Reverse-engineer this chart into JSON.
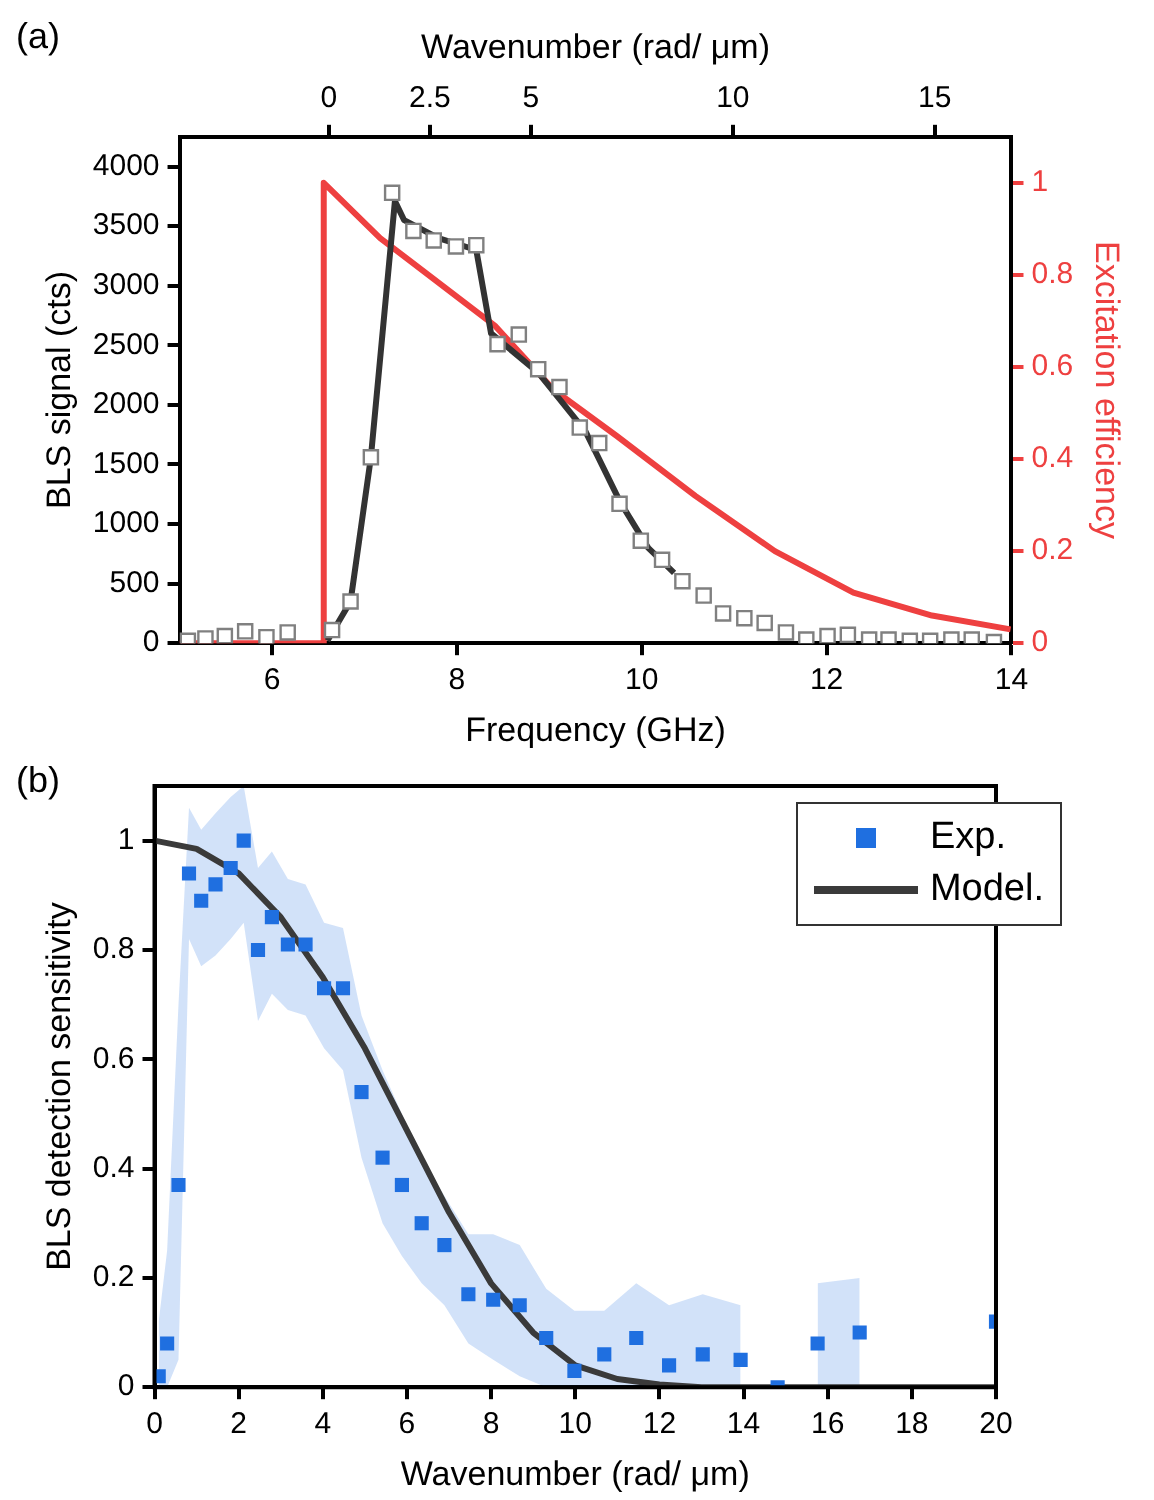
{
  "chart_data": [
    {
      "type": "line",
      "xlabel": "Frequency (GHz)",
      "ylabel": "BLS signal (cts)",
      "y2label": "Excitation efficiency",
      "x2label": "Wavenumber (rad/ μm)",
      "annotations": [
        "(a)"
      ],
      "xlim": [
        5,
        14
      ],
      "xticks": [
        6,
        8,
        10,
        12,
        14
      ],
      "ylim": [
        0,
        4250
      ],
      "yticks": [
        0,
        500,
        1000,
        1500,
        2000,
        2500,
        3000,
        3500,
        4000
      ],
      "y2lim": [
        0,
        1.1
      ],
      "y2ticks": [
        0,
        0.2,
        0.4,
        0.6,
        0.8,
        1.0
      ],
      "x2lim": [
        -3.7,
        16.9
      ],
      "x2ticks": [
        0,
        2.5,
        5,
        10,
        15
      ],
      "grid": false,
      "legend": false,
      "series": [
        {
          "type": "scatter",
          "marker": "square",
          "color": "#808080",
          "x": [
            5.09,
            5.28,
            5.49,
            5.71,
            5.94,
            6.17,
            6.65,
            6.85,
            7.07,
            7.3,
            7.53,
            7.75,
            7.99,
            8.21,
            8.44,
            8.67,
            8.88,
            9.11,
            9.33,
            9.54,
            9.76,
            9.99,
            10.22,
            10.44,
            10.67,
            10.88,
            11.11,
            11.33,
            11.56,
            11.78,
            12.01,
            12.23,
            12.46,
            12.67,
            12.9,
            13.12,
            13.35,
            13.57,
            13.81
          ],
          "values": [
            20,
            40,
            60,
            100,
            50,
            90,
            110,
            350,
            1560,
            3780,
            3460,
            3380,
            3330,
            3340,
            2510,
            2590,
            2300,
            2150,
            1810,
            1680,
            1170,
            860,
            700,
            520,
            400,
            250,
            210,
            170,
            90,
            30,
            60,
            70,
            30,
            30,
            20,
            20,
            30,
            30,
            10
          ]
        },
        {
          "marker": "none",
          "color": "#333333",
          "x": [
            6.6,
            6.85,
            7.07,
            7.33,
            7.43,
            7.8,
            8.21,
            8.37,
            8.88,
            9.39,
            9.77,
            10.07,
            10.35
          ],
          "values": [
            20,
            350,
            1560,
            3710,
            3550,
            3400,
            3300,
            2600,
            2270,
            1780,
            1180,
            800,
            590
          ]
        },
        {
          "marker": "none",
          "axis": "y2",
          "color": "#ee4040",
          "x": [
            5,
            6.55,
            6.56,
            7.17,
            8.41,
            9.05,
            9.73,
            10.58,
            11.44,
            12.29,
            13.14,
            13.99
          ],
          "values": [
            0,
            0,
            1.0,
            0.88,
            0.69,
            0.55,
            0.45,
            0.32,
            0.2,
            0.11,
            0.06,
            0.03
          ]
        }
      ]
    },
    {
      "type": "scatter",
      "xlabel": "Wavenumber (rad/ μm)",
      "ylabel": "BLS detection sensitivity",
      "annotations": [
        "(b)"
      ],
      "xlim": [
        0,
        20
      ],
      "xticks": [
        0,
        2,
        4,
        6,
        8,
        10,
        12,
        14,
        16,
        18,
        20
      ],
      "ylim": [
        0,
        1.1
      ],
      "yticks": [
        0,
        0.2,
        0.4,
        0.6,
        0.8,
        1.0
      ],
      "grid": false,
      "legend": "top right",
      "series": [
        {
          "name": "Exp.",
          "marker": "square",
          "color": "#1f6fe0",
          "x": [
            0.1,
            0.3,
            0.57,
            0.82,
            1.11,
            1.45,
            1.81,
            2.12,
            2.46,
            2.79,
            3.17,
            3.59,
            4.03,
            4.48,
            4.92,
            5.42,
            5.88,
            6.35,
            6.89,
            7.46,
            8.05,
            8.68,
            9.31,
            9.98,
            10.69,
            11.45,
            12.23,
            13.03,
            13.93,
            14.81,
            15.76,
            16.76,
            20
          ],
          "values": [
            0.02,
            0.08,
            0.37,
            0.94,
            0.89,
            0.92,
            0.95,
            1.0,
            0.8,
            0.86,
            0.81,
            0.81,
            0.73,
            0.73,
            0.54,
            0.42,
            0.37,
            0.3,
            0.26,
            0.17,
            0.16,
            0.15,
            0.09,
            0.03,
            0.06,
            0.09,
            0.04,
            0.06,
            0.05,
            0.0,
            0.08,
            0.1,
            0.12
          ],
          "lower": [
            0,
            0,
            0.05,
            0.82,
            0.77,
            0.79,
            0.82,
            0.85,
            0.67,
            0.72,
            0.69,
            0.68,
            0.62,
            0.58,
            0.42,
            0.3,
            0.24,
            0.19,
            0.15,
            0.08,
            0.05,
            0.02,
            0,
            0,
            0,
            0,
            0,
            0,
            0,
            null,
            0,
            0,
            null
          ],
          "upper": [
            0.12,
            0.25,
            0.7,
            1.06,
            1.02,
            1.05,
            1.08,
            1.1,
            0.95,
            0.98,
            0.93,
            0.92,
            0.85,
            0.84,
            0.68,
            0.58,
            0.5,
            0.42,
            0.35,
            0.28,
            0.28,
            0.26,
            0.18,
            0.14,
            0.14,
            0.19,
            0.15,
            0.17,
            0.15,
            null,
            0.19,
            0.2,
            null
          ]
        },
        {
          "name": "Model.",
          "type": "line",
          "marker": "none",
          "color": "#3a3a3a",
          "x": [
            0,
            1,
            2,
            3,
            4,
            5,
            6,
            7,
            8,
            9,
            10,
            11,
            12,
            13,
            14,
            20
          ],
          "values": [
            1.0,
            0.985,
            0.94,
            0.86,
            0.75,
            0.62,
            0.47,
            0.32,
            0.19,
            0.1,
            0.04,
            0.015,
            0.005,
            0,
            0,
            0
          ]
        }
      ]
    }
  ]
}
